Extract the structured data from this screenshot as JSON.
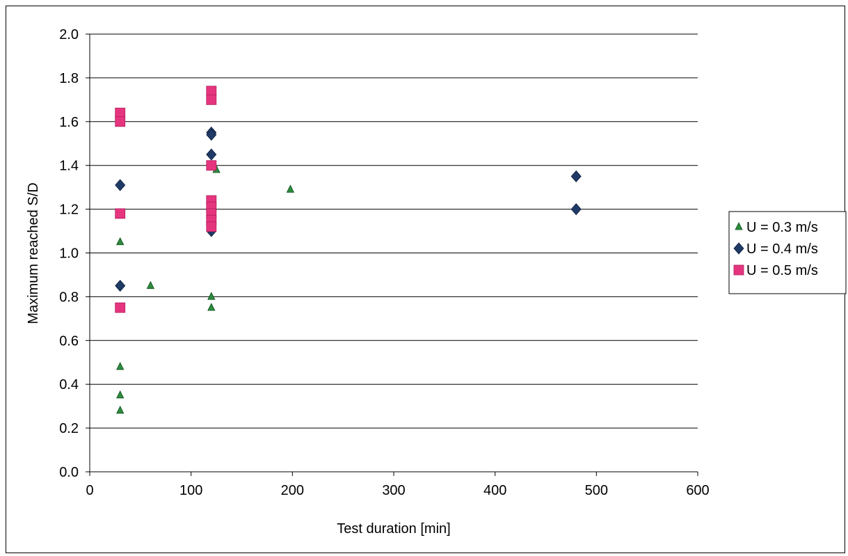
{
  "chart_data": {
    "type": "scatter",
    "title": "",
    "xlabel": "Test duration [min]",
    "ylabel": "Maximum reached S/D",
    "xlim": [
      0,
      600
    ],
    "ylim": [
      0.0,
      2.0
    ],
    "x_ticks": [
      0,
      100,
      200,
      300,
      400,
      500,
      600
    ],
    "y_ticks": [
      "0.0",
      "0.2",
      "0.4",
      "0.6",
      "0.8",
      "1.0",
      "1.2",
      "1.4",
      "1.6",
      "1.8",
      "2.0"
    ],
    "grid": "horizontal",
    "legend_position": "right",
    "series": [
      {
        "name": "U = 0.3 m/s",
        "marker": "triangle",
        "color": "#2e8b3e",
        "points": [
          [
            30,
            1.05
          ],
          [
            30,
            0.48
          ],
          [
            30,
            0.35
          ],
          [
            30,
            0.28
          ],
          [
            60,
            0.85
          ],
          [
            120,
            0.8
          ],
          [
            120,
            0.75
          ],
          [
            125,
            1.38
          ],
          [
            198,
            1.29
          ]
        ]
      },
      {
        "name": "U = 0.4 m/s",
        "marker": "diamond",
        "color": "#1f3a66",
        "points": [
          [
            30,
            1.31
          ],
          [
            30,
            0.85
          ],
          [
            120,
            1.55
          ],
          [
            120,
            1.54
          ],
          [
            120,
            1.45
          ],
          [
            120,
            1.1
          ],
          [
            480,
            1.35
          ],
          [
            480,
            1.2
          ]
        ]
      },
      {
        "name": "U = 0.5 m/s",
        "marker": "square",
        "color": "#e6357f",
        "points": [
          [
            30,
            1.64
          ],
          [
            30,
            1.6
          ],
          [
            30,
            1.18
          ],
          [
            30,
            0.75
          ],
          [
            120,
            1.74
          ],
          [
            120,
            1.7
          ],
          [
            120,
            1.4
          ],
          [
            120,
            1.24
          ],
          [
            120,
            1.21
          ],
          [
            120,
            1.18
          ],
          [
            120,
            1.15
          ],
          [
            120,
            1.12
          ]
        ]
      }
    ]
  }
}
